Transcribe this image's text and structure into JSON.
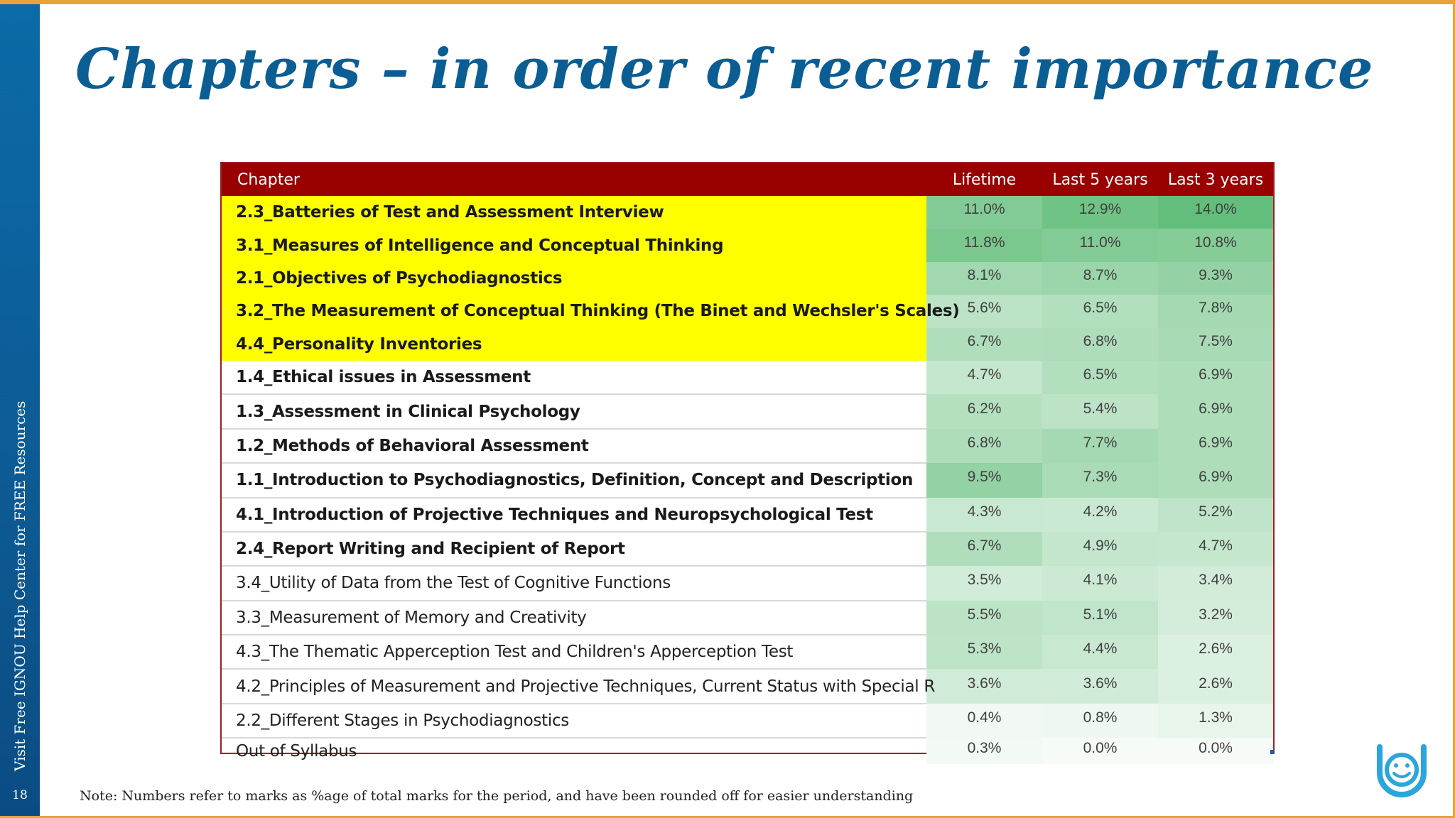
{
  "slide": {
    "title": "Chapters – in order of recent importance",
    "sidebar_text": "Visit Free IGNOU Help Center for FREE Resources",
    "page_number": "18",
    "note": "Note: Numbers refer to marks as %age of total marks for the period, and have been rounded off for easier understanding",
    "logo_icon": "smiley-logo-icon"
  },
  "colors": {
    "header_bg": "#990000",
    "highlight": "#ffff00",
    "accent_blue": "#0b5e93",
    "border_orange": "#e8a33a"
  },
  "table": {
    "headers": [
      "Chapter",
      "Lifetime",
      "Last 5 years",
      "Last 3 years"
    ],
    "rows": [
      {
        "chapter": "2.3_Batteries of Test and Assessment Interview",
        "lifetime": "11.0%",
        "last5": "12.9%",
        "last3": "14.0%",
        "highlight": true,
        "bold": true
      },
      {
        "chapter": "3.1_Measures of Intelligence and Conceptual Thinking",
        "lifetime": "11.8%",
        "last5": "11.0%",
        "last3": "10.8%",
        "highlight": true,
        "bold": true
      },
      {
        "chapter": "2.1_Objectives of Psychodiagnostics",
        "lifetime": "8.1%",
        "last5": "8.7%",
        "last3": "9.3%",
        "highlight": true,
        "bold": true
      },
      {
        "chapter": "3.2_The Measurement of Conceptual Thinking (The Binet and Wechsler's Scales)",
        "lifetime": "5.6%",
        "last5": "6.5%",
        "last3": "7.8%",
        "highlight": true,
        "bold": true
      },
      {
        "chapter": "4.4_Personality Inventories",
        "lifetime": "6.7%",
        "last5": "6.8%",
        "last3": "7.5%",
        "highlight": true,
        "bold": true
      },
      {
        "chapter": "1.4_Ethical issues in Assessment",
        "lifetime": "4.7%",
        "last5": "6.5%",
        "last3": "6.9%",
        "highlight": false,
        "bold": true
      },
      {
        "chapter": "1.3_Assessment in Clinical Psychology",
        "lifetime": "6.2%",
        "last5": "5.4%",
        "last3": "6.9%",
        "highlight": false,
        "bold": true
      },
      {
        "chapter": "1.2_Methods of Behavioral Assessment",
        "lifetime": "6.8%",
        "last5": "7.7%",
        "last3": "6.9%",
        "highlight": false,
        "bold": true
      },
      {
        "chapter": "1.1_Introduction to Psychodiagnostics, Definition, Concept and Description",
        "lifetime": "9.5%",
        "last5": "7.3%",
        "last3": "6.9%",
        "highlight": false,
        "bold": true
      },
      {
        "chapter": "4.1_Introduction of Projective Techniques and Neuropsychological Test",
        "lifetime": "4.3%",
        "last5": "4.2%",
        "last3": "5.2%",
        "highlight": false,
        "bold": true
      },
      {
        "chapter": "2.4_Report Writing and Recipient of Report",
        "lifetime": "6.7%",
        "last5": "4.9%",
        "last3": "4.7%",
        "highlight": false,
        "bold": true
      },
      {
        "chapter": "3.4_Utility of Data from the Test of Cognitive Functions",
        "lifetime": "3.5%",
        "last5": "4.1%",
        "last3": "3.4%",
        "highlight": false,
        "bold": false
      },
      {
        "chapter": "3.3_Measurement of Memory and Creativity",
        "lifetime": "5.5%",
        "last5": "5.1%",
        "last3": "3.2%",
        "highlight": false,
        "bold": false
      },
      {
        "chapter": "4.3_The Thematic Apperception Test and Children's Apperception Test",
        "lifetime": "5.3%",
        "last5": "4.4%",
        "last3": "2.6%",
        "highlight": false,
        "bold": false
      },
      {
        "chapter": "4.2_Principles of Measurement and Projective Techniques, Current Status with Special R",
        "lifetime": "3.6%",
        "last5": "3.6%",
        "last3": "2.6%",
        "highlight": false,
        "bold": false
      },
      {
        "chapter": "2.2_Different Stages in Psychodiagnostics",
        "lifetime": "0.4%",
        "last5": "0.8%",
        "last3": "1.3%",
        "highlight": false,
        "bold": false
      },
      {
        "chapter": "Out of Syllabus",
        "lifetime": "0.3%",
        "last5": "0.0%",
        "last3": "0.0%",
        "highlight": false,
        "bold": false
      }
    ]
  }
}
